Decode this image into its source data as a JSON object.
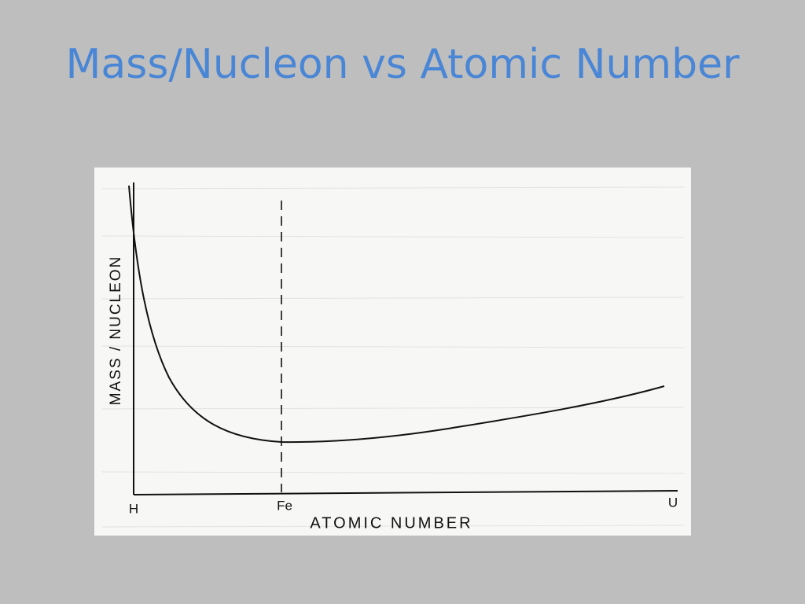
{
  "header": {
    "title": "Mass/Nucleon vs Atomic Number"
  },
  "diagram": {
    "y_axis_label": "MASS / NUCLEON",
    "x_axis_label": "ATOMIC NUMBER",
    "x_markers": [
      "H",
      "Fe",
      "U"
    ]
  }
}
